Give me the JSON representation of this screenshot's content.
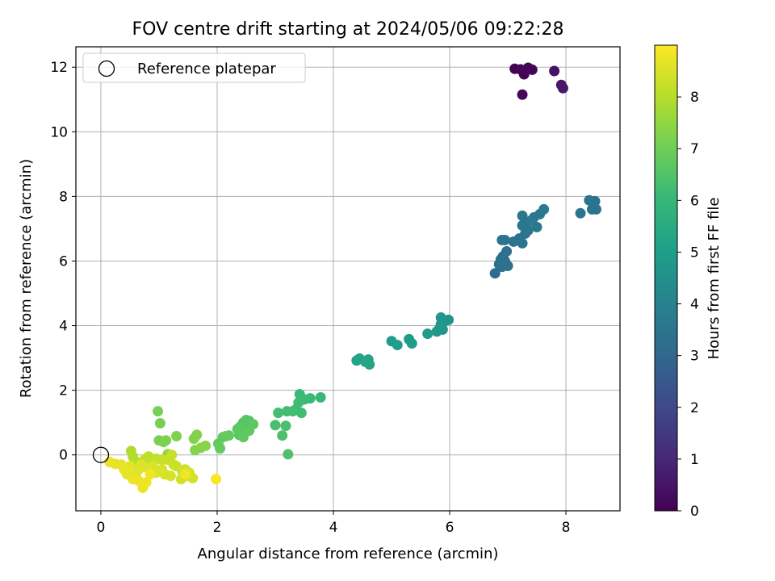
{
  "chart_data": {
    "type": "scatter",
    "title": "FOV centre drift starting at 2024/05/06 09:22:28",
    "xlabel": "Angular distance from reference (arcmin)",
    "ylabel": "Rotation from reference (arcmin)",
    "xlim": [
      -0.43,
      8.93
    ],
    "ylim": [
      -1.73,
      12.63
    ],
    "xticks": [
      0,
      2,
      4,
      6,
      8
    ],
    "yticks": [
      0,
      2,
      4,
      6,
      8,
      10,
      12
    ],
    "grid": true,
    "legend": {
      "placement": "top-left",
      "label": "Reference platepar"
    },
    "reference_point": {
      "x": 0,
      "y": 0
    },
    "colorbar": {
      "label": "Hours from first FF file",
      "range": [
        0,
        9.0
      ],
      "ticks": [
        0,
        1,
        2,
        3,
        4,
        5,
        6,
        7,
        8
      ],
      "colormap": "viridis",
      "stops": [
        "#440154",
        "#482878",
        "#3e4989",
        "#31688e",
        "#26828e",
        "#1f9e89",
        "#35b779",
        "#6ece58",
        "#b5de2b",
        "#fde725"
      ]
    },
    "series": [
      {
        "points": [
          [
            7.12,
            11.95,
            0.02
          ],
          [
            7.22,
            11.93,
            0.04
          ],
          [
            7.28,
            11.78,
            0.06
          ],
          [
            7.35,
            11.98,
            0.08
          ],
          [
            7.42,
            11.92,
            0.1
          ],
          [
            7.3,
            11.9,
            0.12
          ],
          [
            7.25,
            11.15,
            0.18
          ],
          [
            7.8,
            11.88,
            0.45
          ],
          [
            7.92,
            11.45,
            0.55
          ],
          [
            7.95,
            11.35,
            0.6
          ],
          [
            6.78,
            5.62,
            3.15
          ],
          [
            6.85,
            5.9,
            3.2
          ],
          [
            6.9,
            5.82,
            3.25
          ],
          [
            6.95,
            6.0,
            3.28
          ],
          [
            7.0,
            5.85,
            3.3
          ],
          [
            6.92,
            6.15,
            3.32
          ],
          [
            6.88,
            6.05,
            3.34
          ],
          [
            6.98,
            6.3,
            3.36
          ],
          [
            6.9,
            6.65,
            3.38
          ],
          [
            6.95,
            6.65,
            3.4
          ],
          [
            7.1,
            6.6,
            3.42
          ],
          [
            7.2,
            6.7,
            3.44
          ],
          [
            7.3,
            6.85,
            3.46
          ],
          [
            7.25,
            6.55,
            3.48
          ],
          [
            7.35,
            6.95,
            3.5
          ],
          [
            7.25,
            7.1,
            3.52
          ],
          [
            7.3,
            7.2,
            3.54
          ],
          [
            7.25,
            7.4,
            3.56
          ],
          [
            7.45,
            7.35,
            3.58
          ],
          [
            7.5,
            7.05,
            3.6
          ],
          [
            7.55,
            7.45,
            3.62
          ],
          [
            7.4,
            7.25,
            3.64
          ],
          [
            7.62,
            7.6,
            3.66
          ],
          [
            8.25,
            7.48,
            3.5
          ],
          [
            8.4,
            7.88,
            3.42
          ],
          [
            8.5,
            7.85,
            3.44
          ],
          [
            8.45,
            7.6,
            3.46
          ],
          [
            8.52,
            7.6,
            3.48
          ],
          [
            8.48,
            7.7,
            3.4
          ],
          [
            4.4,
            2.92,
            5.2
          ],
          [
            4.45,
            2.98,
            5.22
          ],
          [
            4.6,
            2.95,
            5.24
          ],
          [
            4.62,
            2.8,
            5.26
          ],
          [
            4.55,
            2.88,
            5.28
          ],
          [
            5.0,
            3.52,
            5.0
          ],
          [
            5.1,
            3.4,
            5.02
          ],
          [
            5.3,
            3.58,
            4.98
          ],
          [
            5.35,
            3.45,
            4.96
          ],
          [
            5.62,
            3.75,
            4.85
          ],
          [
            5.78,
            3.82,
            4.8
          ],
          [
            5.82,
            3.9,
            4.78
          ],
          [
            5.85,
            4.05,
            4.75
          ],
          [
            5.88,
            3.88,
            4.72
          ],
          [
            5.85,
            4.25,
            4.7
          ],
          [
            5.98,
            4.18,
            4.68
          ],
          [
            5.92,
            4.15,
            4.66
          ],
          [
            3.42,
            1.88,
            6.1
          ],
          [
            3.5,
            1.72,
            6.12
          ],
          [
            3.35,
            1.4,
            6.15
          ],
          [
            3.4,
            1.62,
            6.18
          ],
          [
            3.45,
            1.3,
            6.2
          ],
          [
            3.3,
            1.35,
            6.22
          ],
          [
            3.6,
            1.75,
            6.08
          ],
          [
            3.78,
            1.78,
            6.05
          ],
          [
            3.05,
            1.3,
            6.25
          ],
          [
            3.2,
            1.35,
            6.28
          ],
          [
            3.0,
            0.92,
            6.35
          ],
          [
            3.18,
            0.9,
            6.38
          ],
          [
            3.12,
            0.6,
            6.4
          ],
          [
            3.22,
            0.02,
            6.45
          ],
          [
            2.55,
            1.05,
            6.5
          ],
          [
            2.45,
            1.0,
            6.55
          ],
          [
            2.55,
            0.9,
            6.58
          ],
          [
            2.5,
            0.72,
            6.6
          ],
          [
            2.38,
            0.62,
            6.62
          ],
          [
            2.4,
            0.88,
            6.65
          ],
          [
            2.35,
            0.8,
            6.68
          ],
          [
            2.62,
            0.95,
            6.7
          ],
          [
            2.55,
            0.75,
            6.72
          ],
          [
            2.45,
            0.55,
            6.74
          ],
          [
            2.2,
            0.6,
            6.76
          ],
          [
            2.1,
            0.55,
            6.78
          ],
          [
            2.02,
            0.35,
            6.8
          ],
          [
            2.05,
            0.2,
            6.82
          ],
          [
            2.15,
            0.58,
            6.84
          ],
          [
            2.5,
            1.08,
            6.6
          ],
          [
            0.98,
            1.35,
            7.1
          ],
          [
            1.02,
            0.98,
            7.12
          ],
          [
            1.0,
            0.45,
            7.15
          ],
          [
            1.08,
            0.4,
            7.18
          ],
          [
            1.12,
            0.45,
            7.2
          ],
          [
            1.3,
            0.58,
            7.22
          ],
          [
            1.6,
            0.5,
            7.25
          ],
          [
            1.65,
            0.62,
            7.28
          ],
          [
            1.62,
            0.15,
            7.3
          ],
          [
            1.72,
            0.22,
            7.32
          ],
          [
            1.8,
            0.28,
            7.35
          ],
          [
            1.15,
            0.02,
            7.5
          ],
          [
            0.52,
            0.12,
            7.9
          ],
          [
            0.55,
            -0.05,
            7.95
          ],
          [
            0.6,
            -0.2,
            8.0
          ],
          [
            0.82,
            -0.05,
            8.05
          ],
          [
            0.75,
            -0.15,
            8.1
          ],
          [
            0.88,
            -0.2,
            8.15
          ],
          [
            0.95,
            -0.12,
            8.2
          ],
          [
            1.05,
            -0.15,
            8.22
          ],
          [
            1.15,
            -0.15,
            8.24
          ],
          [
            1.22,
            0.0,
            8.26
          ],
          [
            1.25,
            -0.3,
            8.28
          ],
          [
            1.3,
            -0.35,
            8.3
          ],
          [
            1.4,
            -0.5,
            8.32
          ],
          [
            1.45,
            -0.45,
            8.34
          ],
          [
            1.38,
            -0.75,
            8.36
          ],
          [
            1.48,
            -0.65,
            8.38
          ],
          [
            1.52,
            -0.55,
            8.4
          ],
          [
            1.58,
            -0.72,
            8.42
          ],
          [
            1.2,
            -0.65,
            8.44
          ],
          [
            1.1,
            -0.6,
            8.46
          ],
          [
            1.05,
            -0.45,
            8.48
          ],
          [
            0.95,
            -0.55,
            8.5
          ],
          [
            0.9,
            -0.35,
            8.52
          ],
          [
            0.8,
            -0.4,
            8.54
          ],
          [
            0.7,
            -0.3,
            8.56
          ],
          [
            0.65,
            -0.45,
            8.58
          ],
          [
            0.6,
            -0.62,
            8.6
          ],
          [
            0.5,
            -0.35,
            8.62
          ],
          [
            0.45,
            -0.6,
            8.64
          ],
          [
            0.4,
            -0.45,
            8.66
          ],
          [
            0.35,
            -0.3,
            8.68
          ],
          [
            0.25,
            -0.28,
            8.7
          ],
          [
            0.15,
            -0.22,
            8.72
          ],
          [
            0.55,
            -0.75,
            8.74
          ],
          [
            0.72,
            -1.02,
            8.76
          ],
          [
            0.78,
            -0.85,
            8.78
          ],
          [
            0.65,
            -0.8,
            8.8
          ],
          [
            1.45,
            -0.6,
            8.82
          ],
          [
            1.98,
            -0.75,
            8.95
          ],
          [
            0.85,
            -0.6,
            8.84
          ]
        ]
      }
    ]
  }
}
